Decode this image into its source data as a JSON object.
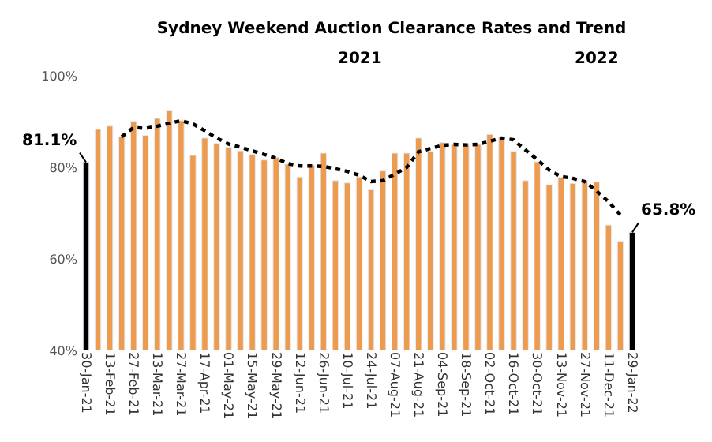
{
  "chart_data": {
    "type": "bar",
    "title": "Sydney Weekend Auction Clearance Rates and Trend",
    "annotations": [
      "2021",
      "2022"
    ],
    "categories": [
      "30-Jan-21",
      null,
      "13-Feb-21",
      null,
      "27-Feb-21",
      null,
      "13-Mar-21",
      null,
      "27-Mar-21",
      null,
      "17-Apr-21",
      null,
      "01-May-21",
      null,
      "15-May-21",
      null,
      "29-May-21",
      null,
      "12-Jun-21",
      null,
      "26-Jun-21",
      null,
      "10-Jul-21",
      null,
      "24-Jul-21",
      null,
      "07-Aug-21",
      null,
      "21-Aug-21",
      null,
      "04-Sep-21",
      null,
      "18-Sep-21",
      null,
      "02-Oct-21",
      null,
      "16-Oct-21",
      null,
      "30-Oct-21",
      null,
      "13-Nov-21",
      null,
      "27-Nov-21",
      null,
      "11-Dec-21",
      null,
      "29-Jan-22"
    ],
    "series": [
      {
        "colors": [
          "#000000",
          "#ed9c4f",
          "#ed9c4f",
          "#ed9c4f",
          "#ed9c4f",
          "#ed9c4f",
          "#ed9c4f",
          "#ed9c4f",
          "#ed9c4f",
          "#ed9c4f",
          "#ed9c4f",
          "#ed9c4f",
          "#ed9c4f",
          "#ed9c4f",
          "#ed9c4f",
          "#ed9c4f",
          "#ed9c4f",
          "#ed9c4f",
          "#ed9c4f",
          "#ed9c4f",
          "#ed9c4f",
          "#ed9c4f",
          "#ed9c4f",
          "#ed9c4f",
          "#ed9c4f",
          "#ed9c4f",
          "#ed9c4f",
          "#ed9c4f",
          "#ed9c4f",
          "#ed9c4f",
          "#ed9c4f",
          "#ed9c4f",
          "#ed9c4f",
          "#ed9c4f",
          "#ed9c4f",
          "#ed9c4f",
          "#ed9c4f",
          "#ed9c4f",
          "#ed9c4f",
          "#ed9c4f",
          "#ed9c4f",
          "#ed9c4f",
          "#ed9c4f",
          "#ed9c4f",
          "#ed9c4f",
          "#ed9c4f",
          "#000000"
        ],
        "values": [
          81.1,
          88.3,
          89.0,
          86.7,
          90.1,
          87.0,
          90.7,
          92.5,
          90.2,
          82.6,
          86.4,
          85.2,
          84.4,
          83.6,
          82.8,
          81.6,
          82.2,
          80.7,
          77.9,
          80.5,
          83.1,
          77.1,
          76.6,
          77.9,
          75.1,
          79.2,
          83.1,
          83.1,
          86.4,
          83.5,
          85.4,
          85.0,
          85.0,
          85.0,
          87.2,
          86.6,
          83.5,
          77.1,
          81.2,
          76.2,
          77.8,
          76.5,
          77.1,
          76.8,
          67.4,
          63.9,
          65.8
        ],
        "value_labels": [
          "81.1%",
          null,
          null,
          null,
          null,
          null,
          null,
          null,
          null,
          null,
          null,
          null,
          null,
          null,
          null,
          null,
          null,
          null,
          null,
          null,
          null,
          null,
          null,
          null,
          null,
          null,
          null,
          null,
          null,
          null,
          null,
          null,
          null,
          null,
          null,
          null,
          null,
          null,
          null,
          null,
          null,
          null,
          null,
          null,
          null,
          null,
          "65.8%"
        ]
      },
      {
        "type": "line",
        "color": "#000000",
        "line_style": "dotted",
        "values": [
          null,
          null,
          null,
          86.7,
          88.7,
          88.5,
          89.0,
          89.6,
          90.2,
          89.5,
          88.0,
          86.4,
          85.1,
          84.4,
          83.6,
          82.8,
          82.0,
          80.8,
          80.3,
          80.3,
          80.2,
          79.7,
          79.1,
          78.3,
          76.9,
          77.1,
          78.5,
          80.0,
          83.4,
          84.1,
          84.8,
          85.0,
          84.9,
          85.0,
          85.7,
          86.4,
          86.0,
          83.8,
          81.7,
          79.4,
          78.0,
          77.6,
          76.9,
          74.8,
          72.5,
          69.6,
          null
        ]
      }
    ],
    "ylim": [
      40,
      100
    ],
    "yticks": [
      {
        "value": 40,
        "label": "40%"
      },
      {
        "value": 60,
        "label": "60%"
      },
      {
        "value": 80,
        "label": "80%"
      },
      {
        "value": 100,
        "label": "100%"
      }
    ]
  }
}
